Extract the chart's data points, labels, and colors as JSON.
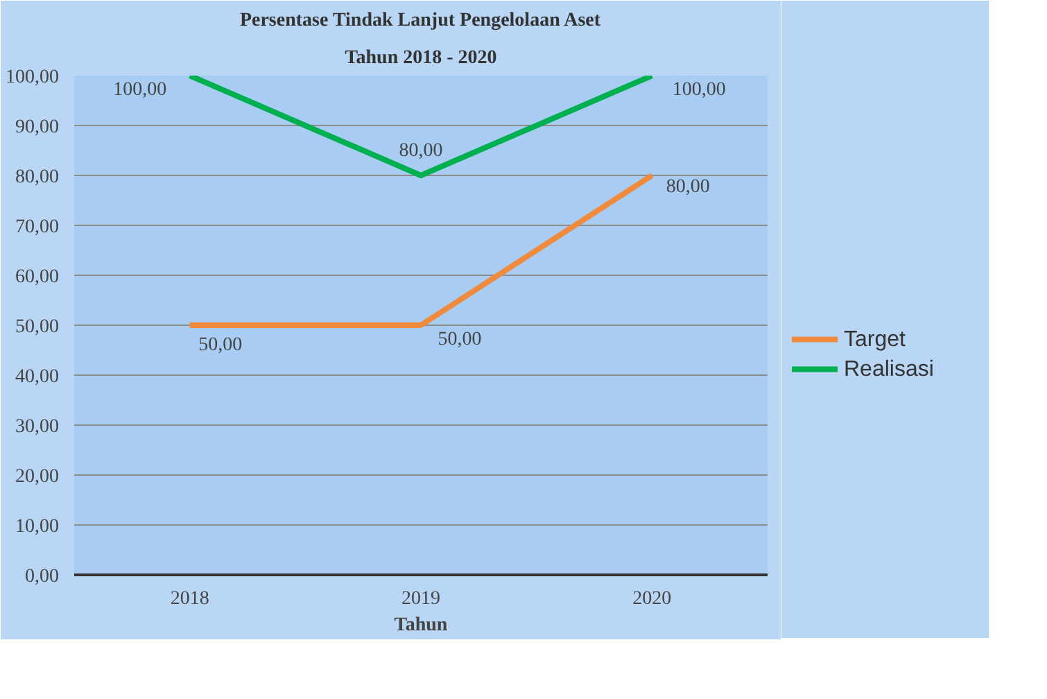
{
  "chart_data": {
    "type": "line",
    "title": "Persentase Tindak Lanjut Pengelolaan Aset",
    "subtitle": "Tahun 2018 - 2020",
    "xlabel": "Tahun",
    "categories": [
      "2018",
      "2019",
      "2020"
    ],
    "series": [
      {
        "name": "Target",
        "color": "#f08a3c",
        "values": [
          50,
          50,
          80
        ],
        "value_labels": [
          "50,00",
          "50,00",
          "80,00"
        ]
      },
      {
        "name": "Realisasi",
        "color": "#00b050",
        "values": [
          100,
          80,
          100
        ],
        "value_labels": [
          "100,00",
          "80,00",
          "100,00"
        ]
      }
    ],
    "ylim": [
      0,
      100
    ],
    "yticks": [
      {
        "value": 0,
        "label": "0,00"
      },
      {
        "value": 10,
        "label": "10,00"
      },
      {
        "value": 20,
        "label": "20,00"
      },
      {
        "value": 30,
        "label": "30,00"
      },
      {
        "value": 40,
        "label": "40,00"
      },
      {
        "value": 50,
        "label": "50,00"
      },
      {
        "value": 60,
        "label": "60,00"
      },
      {
        "value": 70,
        "label": "70,00"
      },
      {
        "value": 80,
        "label": "80,00"
      },
      {
        "value": 90,
        "label": "90,00"
      },
      {
        "value": 100,
        "label": "100,00"
      }
    ],
    "grid": "y",
    "legend": "right",
    "marker": "none",
    "line_style": "solid"
  }
}
